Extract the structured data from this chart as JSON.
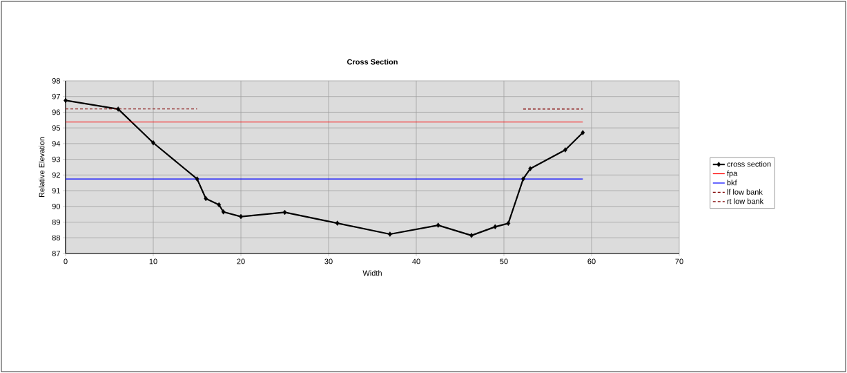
{
  "chart_data": {
    "type": "line",
    "title": "Cross Section",
    "xlabel": "Width",
    "ylabel": "Relative Elevation",
    "xlim": [
      0,
      70
    ],
    "xticks": [
      0,
      10,
      20,
      30,
      40,
      50,
      60,
      70
    ],
    "ylim": [
      87,
      98
    ],
    "yticks": [
      87,
      88,
      89,
      90,
      91,
      92,
      93,
      94,
      95,
      96,
      97,
      98
    ],
    "grid": true,
    "legend": "right",
    "series": [
      {
        "name": "cross section",
        "color": "#000000",
        "marker": "diamond",
        "line_style": "solid",
        "x": [
          0,
          6,
          10,
          15,
          16,
          17.5,
          18,
          20,
          25,
          31,
          37,
          42.5,
          46.3,
          49,
          50.5,
          52.2,
          53,
          57,
          59
        ],
        "values": [
          96.75,
          96.2,
          94.05,
          91.75,
          90.5,
          90.1,
          89.65,
          89.35,
          89.62,
          88.93,
          88.23,
          88.8,
          88.15,
          88.7,
          88.92,
          91.75,
          92.4,
          93.6,
          94.7
        ]
      },
      {
        "name": "fpa",
        "color": "#ff0000",
        "marker": "none",
        "line_style": "solid",
        "x": [
          0,
          59
        ],
        "values": [
          95.37,
          95.37
        ]
      },
      {
        "name": "bkf",
        "color": "#0000ff",
        "marker": "none",
        "line_style": "solid",
        "x": [
          0,
          59
        ],
        "values": [
          91.75,
          91.75
        ]
      },
      {
        "name": "lf low bank",
        "color": "#800000",
        "marker": "none",
        "line_style": "dashed",
        "x": [
          0,
          15
        ],
        "values": [
          96.2,
          96.2
        ]
      },
      {
        "name": "rt low bank",
        "color": "#800000",
        "marker": "none",
        "line_style": "dashed",
        "x": [
          52.2,
          59
        ],
        "values": [
          96.2,
          96.2
        ]
      }
    ]
  }
}
